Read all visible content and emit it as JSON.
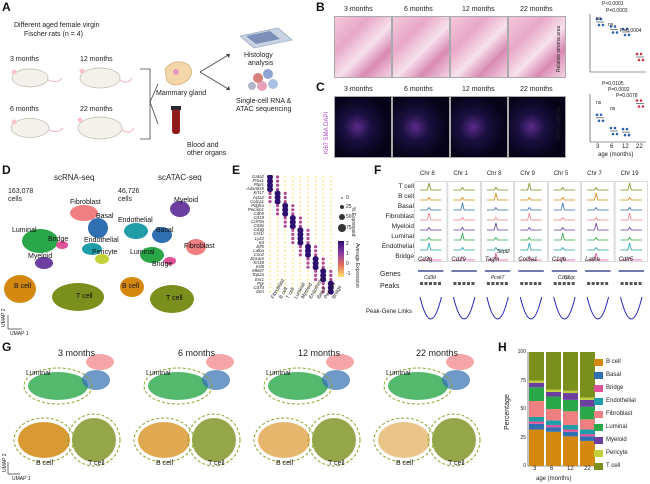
{
  "panel_labels": [
    "A",
    "B",
    "C",
    "D",
    "E",
    "F",
    "G",
    "H"
  ],
  "panelA": {
    "header": "Different aged female virgin",
    "header2": "Fischer rats (n = 4)",
    "ages": [
      "3 months",
      "12 months",
      "6 months",
      "22 months"
    ],
    "organ1": "Mammary gland",
    "organ2": "Blood and",
    "organ2b": "other organs",
    "out1": "Histology",
    "out1b": "analysis",
    "out2": "Single-cell RNA &",
    "out2b": "ATAC sequencing"
  },
  "panelB": {
    "titles": [
      "3 months",
      "6 months",
      "12 months",
      "22 months"
    ],
    "ylabel": "Relative stroma area",
    "sig": [
      "P<0.0001",
      "P=0.0003",
      "P=0.0004",
      "ns",
      "ns"
    ]
  },
  "panelC": {
    "titles": [
      "3 months",
      "6 months",
      "12 months",
      "22 months"
    ],
    "ylabel": "Ki67+ cells (%)",
    "side_label": "Ki67 SMA DAPI",
    "sig": [
      "P=0.0105",
      "P=0.0092",
      "P=0.0078",
      "ns",
      "ns"
    ],
    "xticks": [
      "3",
      "6",
      "12",
      "22"
    ],
    "xlabel": "age (months)"
  },
  "panelD": {
    "titleL": "scRNA-seq",
    "countL": "163,078",
    "cellsL": "cells",
    "titleR": "scATAC-seq",
    "countR": "46,726",
    "cellsR": "cells",
    "labelsL": [
      "Fibroblast",
      "Basal",
      "Luminal",
      "Bridge",
      "Endothelial",
      "Pericyte",
      "Myeloid",
      "B cell",
      "T cell"
    ],
    "labelsR": [
      "Myeloid",
      "Endothelial",
      "Basal",
      "Fibroblast",
      "Luminal",
      "Bridge",
      "B cell",
      "T cell"
    ],
    "axis1": "UMAP 1",
    "axis2": "UMAP 2"
  },
  "panelE": {
    "genes": [
      "Gata2",
      "Prox1",
      "Ptprc",
      "Adamts5",
      "Krt17",
      "Acta2",
      "Col1a1",
      "Pdgfra",
      "Pecam1",
      "Cdh5",
      "Cd19",
      "Cd79a",
      "Cd3e",
      "Cd3g",
      "Csf1r",
      "Lyz2",
      "Kit",
      "Elf5",
      "Lalba",
      "Csn2",
      "Epcam",
      "Krt18",
      "Krt8",
      "Mki67",
      "Top2a",
      "Esr1",
      "Pgr",
      "Cd74",
      "Dcn"
    ],
    "cells": [
      "Fibroblast",
      "B cell",
      "T cell",
      "Luminal",
      "Myeloid",
      "Endothelial",
      "Basal",
      "Pericyte",
      "Bridge"
    ],
    "legend_size_title": "% Expressed",
    "legend_sizes": [
      "0",
      "25",
      "50",
      "75"
    ],
    "legend_color_title": "Average Expression",
    "legend_colors": [
      "2",
      "1",
      "0",
      "-1"
    ]
  },
  "panelF": {
    "chrs": [
      "Chr 8",
      "Chr 1",
      "Chr 8",
      "Chr 9",
      "Chr 5",
      "Chr 7",
      "Chr 19"
    ],
    "tracks": [
      "T cell",
      "B cell",
      "Basal",
      "Fibroblast",
      "Myeloid",
      "Luminal",
      "Endothelial",
      "Bridge"
    ],
    "genes_top": [
      "Cd3g",
      "Cd19",
      "Tagln",
      "Col3a1",
      "C1qb",
      "Lalba",
      "Cdh5"
    ],
    "genes_extra": [
      "Cd3d",
      "Sept2",
      "Pcsk7",
      "C1qc",
      "C1qa"
    ],
    "row_labels": [
      "Genes",
      "Peaks",
      "Peak-Gene Links"
    ]
  },
  "panelG": {
    "titles": [
      "3 months",
      "6 months",
      "12 months",
      "22 months"
    ],
    "labels": [
      "Luminal",
      "B cell",
      "T cell"
    ],
    "axis1": "UMAP 1",
    "axis2": "UMAP 2"
  },
  "panelH": {
    "ylabel": "Percentage",
    "xlabel": "age (months)",
    "xticks": [
      "3",
      "6",
      "12",
      "22"
    ],
    "yticks": [
      "0",
      "25",
      "50",
      "75",
      "100"
    ],
    "legend": [
      "B cell",
      "Basal",
      "Bridge",
      "Endothelial",
      "Fibroblast",
      "Luminal",
      "Myeloid",
      "Pericyte",
      "T cell"
    ],
    "colors": {
      "B cell": "#d4880f",
      "Basal": "#2f6fb2",
      "Bridge": "#e0529a",
      "Endothelial": "#1f9ea8",
      "Fibroblast": "#f07f82",
      "Luminal": "#2aa748",
      "Myeloid": "#6a3fa0",
      "Pericyte": "#c2d13a",
      "T cell": "#7a8f1c"
    }
  },
  "chart_data": [
    {
      "type": "bar",
      "title": "",
      "categories": [
        "3",
        "6",
        "12",
        "22"
      ],
      "xlabel": "age (months)",
      "ylabel": "Percentage",
      "ylim": [
        0,
        100
      ],
      "stacked": true,
      "series": [
        {
          "name": "B cell",
          "values": [
            32,
            30,
            26,
            22
          ]
        },
        {
          "name": "Basal",
          "values": [
            5,
            4,
            4,
            4
          ]
        },
        {
          "name": "Bridge",
          "values": [
            2,
            2,
            2,
            2
          ]
        },
        {
          "name": "Endothelial",
          "values": [
            4,
            4,
            4,
            4
          ]
        },
        {
          "name": "Fibroblast",
          "values": [
            14,
            10,
            12,
            9
          ]
        },
        {
          "name": "Luminal",
          "values": [
            12,
            11,
            10,
            11
          ]
        },
        {
          "name": "Myeloid",
          "values": [
            4,
            4,
            6,
            6
          ]
        },
        {
          "name": "Pericyte",
          "values": [
            2,
            2,
            2,
            2
          ]
        },
        {
          "name": "T cell",
          "values": [
            25,
            33,
            34,
            40
          ]
        }
      ]
    },
    {
      "type": "scatter",
      "title": "",
      "categories": [
        "3",
        "6",
        "12",
        "22"
      ],
      "ylabel": "Relative stroma area",
      "series": [
        {
          "name": "",
          "values": [
            1.0,
            0.85,
            0.8,
            0.3
          ]
        }
      ]
    },
    {
      "type": "scatter",
      "title": "",
      "categories": [
        "3",
        "6",
        "12",
        "22"
      ],
      "xlabel": "age (months)",
      "ylabel": "Ki67+ cells (%)",
      "series": [
        {
          "name": "",
          "values": [
            22,
            10,
            9,
            35
          ]
        }
      ]
    }
  ]
}
